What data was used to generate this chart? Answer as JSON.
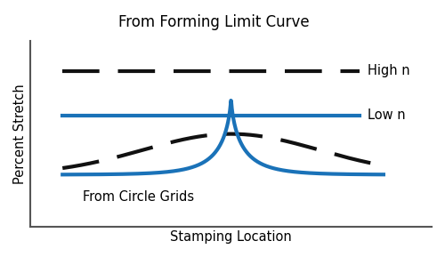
{
  "title": "From Forming Limit Curve",
  "xlabel": "Stamping Location",
  "ylabel": "Percent Stretch",
  "label_high_n": "High n",
  "label_low_n": "Low n",
  "label_circle_grids": "From Circle Grids",
  "background_color": "#ffffff",
  "border_color": "#555555",
  "line_color_blue": "#1a72b8",
  "line_color_dashed": "#111111",
  "title_fontsize": 12,
  "label_fontsize": 10.5,
  "axis_label_fontsize": 10.5
}
